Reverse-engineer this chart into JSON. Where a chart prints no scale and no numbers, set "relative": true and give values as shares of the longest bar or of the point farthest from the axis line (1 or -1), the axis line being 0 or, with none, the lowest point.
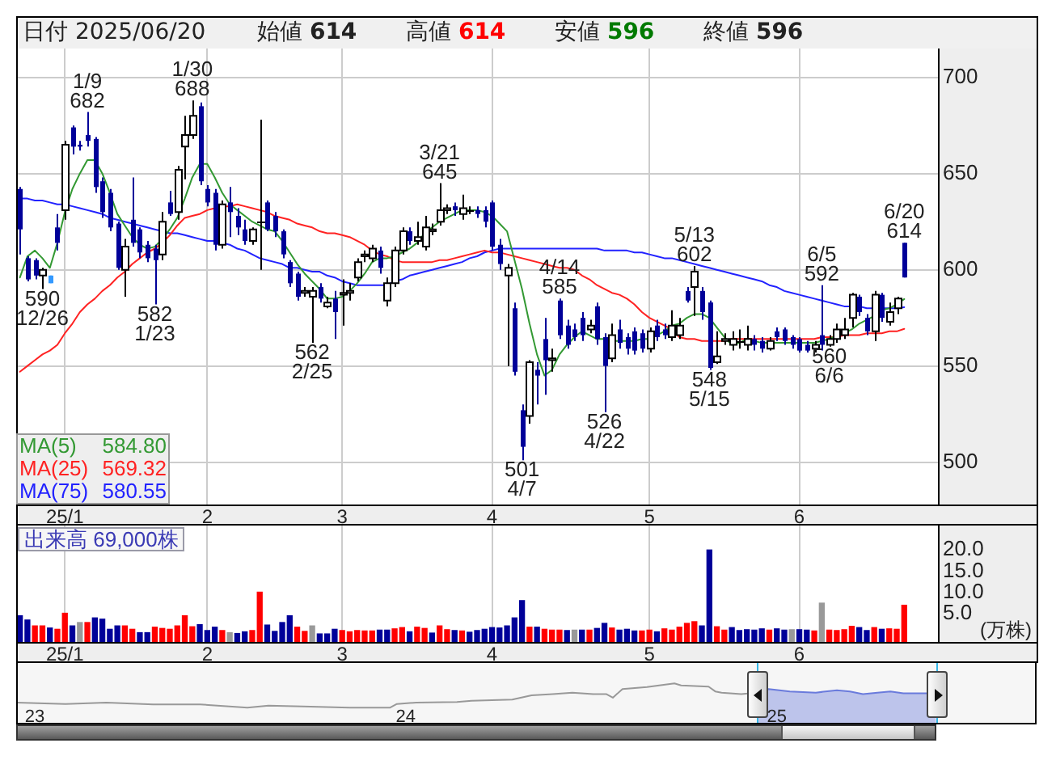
{
  "chart_data": [
    {
      "type": "candlestick",
      "annotations": [
        "日付 2025/06/20",
        "始値 614",
        "高値 614",
        "安値 596",
        "終値 596",
        {
          "text": "1/9\n682",
          "y": 682
        },
        {
          "text": "1/30\n688",
          "y": 688
        },
        {
          "text": "590\n12/26",
          "y": 590
        },
        {
          "text": "582\n1/23",
          "y": 582
        },
        {
          "text": "562\n2/25",
          "y": 562
        },
        {
          "text": "3/21\n645",
          "y": 645
        },
        {
          "text": "501\n4/7",
          "y": 501
        },
        {
          "text": "4/14\n585",
          "y": 585
        },
        {
          "text": "526\n4/22",
          "y": 526
        },
        {
          "text": "5/13\n602",
          "y": 602
        },
        {
          "text": "548\n5/15",
          "y": 548
        },
        {
          "text": "6/5\n592",
          "y": 592
        },
        {
          "text": "560\n6/6",
          "y": 560
        },
        {
          "text": "6/20\n614",
          "y": 614
        }
      ],
      "categories": [
        null,
        null,
        null,
        null,
        null,
        null,
        "25/1",
        null,
        null,
        null,
        null,
        null,
        null,
        null,
        null,
        null,
        null,
        null,
        null,
        null,
        null,
        null,
        null,
        null,
        null,
        "2",
        null,
        null,
        null,
        null,
        null,
        null,
        null,
        null,
        null,
        null,
        null,
        null,
        null,
        null,
        null,
        null,
        null,
        "3",
        null,
        null,
        null,
        null,
        null,
        null,
        null,
        null,
        null,
        null,
        null,
        null,
        null,
        null,
        null,
        null,
        null,
        null,
        null,
        "4",
        null,
        null,
        null,
        null,
        null,
        null,
        null,
        null,
        null,
        null,
        null,
        null,
        null,
        null,
        null,
        null,
        null,
        null,
        null,
        null,
        "5",
        null,
        null,
        null,
        null,
        null,
        null,
        null,
        null,
        null,
        null,
        null,
        null,
        null,
        null,
        null,
        null,
        null,
        null,
        null,
        "6",
        null,
        null,
        null,
        null,
        null,
        null,
        null,
        null,
        null,
        null,
        null,
        null,
        null,
        null
      ],
      "ohlc": [
        [
          642,
          643,
          608,
          621
        ],
        [
          606,
          607,
          594,
          595
        ],
        [
          605,
          606,
          595,
          597
        ],
        [
          597,
          601,
          590,
          600
        ],
        [
          597,
          597,
          593,
          593
        ],
        [
          622,
          629,
          610,
          614
        ],
        [
          631,
          667,
          626,
          665
        ],
        [
          674,
          675,
          660,
          664
        ],
        [
          665,
          667,
          662,
          664
        ],
        [
          670,
          682,
          664,
          667
        ],
        [
          668,
          669,
          640,
          643
        ],
        [
          646,
          648,
          627,
          630
        ],
        [
          640,
          642,
          620,
          622
        ],
        [
          624,
          625,
          600,
          601
        ],
        [
          600,
          616,
          586,
          612
        ],
        [
          626,
          648,
          612,
          614
        ],
        [
          621,
          622,
          606,
          609
        ],
        [
          613,
          615,
          604,
          606
        ],
        [
          611,
          613,
          582,
          605
        ],
        [
          608,
          630,
          605,
          625
        ],
        [
          635,
          641,
          628,
          629
        ],
        [
          630,
          654,
          626,
          652
        ],
        [
          664,
          680,
          647,
          670
        ],
        [
          670,
          688,
          668,
          680
        ],
        [
          685,
          687,
          644,
          646
        ],
        [
          642,
          644,
          633,
          635
        ],
        [
          640,
          642,
          610,
          613
        ],
        [
          613,
          636,
          611,
          634
        ],
        [
          635,
          643,
          617,
          630
        ],
        [
          628,
          632,
          618,
          622
        ],
        [
          621,
          626,
          613,
          615
        ],
        [
          615,
          622,
          613,
          621
        ],
        [
          625,
          678,
          600,
          625
        ],
        [
          635,
          636,
          620,
          621
        ],
        [
          628,
          630,
          617,
          620
        ],
        [
          620,
          621,
          606,
          608
        ],
        [
          604,
          605,
          591,
          593
        ],
        [
          598,
          599,
          584,
          586
        ],
        [
          588,
          591,
          586,
          589
        ],
        [
          586,
          591,
          562,
          589
        ],
        [
          591,
          593,
          583,
          585
        ],
        [
          581,
          586,
          580,
          583
        ],
        [
          585,
          589,
          564,
          578
        ],
        [
          587,
          595,
          571,
          588
        ],
        [
          588,
          593,
          584,
          589
        ],
        [
          596,
          606,
          594,
          604
        ],
        [
          607,
          610,
          604,
          608
        ],
        [
          606,
          613,
          604,
          611
        ],
        [
          610,
          612,
          598,
          601
        ],
        [
          584,
          596,
          581,
          593
        ],
        [
          593,
          612,
          591,
          610
        ],
        [
          610,
          622,
          608,
          620
        ],
        [
          620,
          622,
          613,
          615
        ],
        [
          615,
          625,
          613,
          617
        ],
        [
          612,
          628,
          610,
          622
        ],
        [
          620,
          624,
          618,
          621
        ],
        [
          625,
          645,
          623,
          631
        ],
        [
          631,
          634,
          629,
          632
        ],
        [
          633,
          635,
          628,
          631
        ],
        [
          629,
          639,
          626,
          632
        ],
        [
          631,
          633,
          629,
          631
        ],
        [
          631,
          633,
          627,
          629
        ],
        [
          631,
          633,
          622,
          625
        ],
        [
          635,
          636,
          610,
          612
        ],
        [
          613,
          616,
          600,
          603
        ],
        [
          597,
          603,
          550,
          601
        ],
        [
          580,
          583,
          545,
          547
        ],
        [
          527,
          530,
          501,
          508
        ],
        [
          524,
          553,
          520,
          552
        ],
        [
          548,
          552,
          530,
          545
        ],
        [
          564,
          575,
          535,
          553
        ],
        [
          553,
          559,
          547,
          554
        ],
        [
          584,
          585,
          564,
          566
        ],
        [
          571,
          574,
          559,
          561
        ],
        [
          569,
          572,
          563,
          565
        ],
        [
          575,
          578,
          563,
          566
        ],
        [
          569,
          574,
          567,
          571
        ],
        [
          581,
          583,
          561,
          564
        ],
        [
          565,
          567,
          526,
          550
        ],
        [
          554,
          572,
          552,
          566
        ],
        [
          569,
          574,
          559,
          562
        ],
        [
          565,
          567,
          556,
          559
        ],
        [
          568,
          570,
          556,
          558
        ],
        [
          567,
          569,
          557,
          559
        ],
        [
          559,
          570,
          557,
          568
        ],
        [
          571,
          574,
          563,
          565
        ],
        [
          569,
          572,
          564,
          566
        ],
        [
          565,
          579,
          563,
          571
        ],
        [
          566,
          575,
          564,
          571
        ],
        [
          589,
          591,
          583,
          584
        ],
        [
          591,
          602,
          576,
          599
        ],
        [
          589,
          591,
          574,
          578
        ],
        [
          583,
          584,
          548,
          549
        ],
        [
          552,
          568,
          551,
          555
        ],
        [
          563,
          567,
          561,
          564
        ],
        [
          561,
          568,
          558,
          564
        ],
        [
          563,
          569,
          559,
          563
        ],
        [
          561,
          571,
          558,
          564
        ],
        [
          564,
          566,
          558,
          561
        ],
        [
          563,
          565,
          557,
          559
        ],
        [
          559,
          565,
          558,
          563
        ],
        [
          568,
          570,
          563,
          565
        ],
        [
          569,
          570,
          561,
          563
        ],
        [
          565,
          566,
          559,
          561
        ],
        [
          564,
          565,
          557,
          558
        ],
        [
          561,
          563,
          557,
          558
        ],
        [
          559,
          563,
          557,
          561
        ],
        [
          566,
          592,
          558,
          561
        ],
        [
          561,
          566,
          560,
          564
        ],
        [
          564,
          572,
          562,
          569
        ],
        [
          566,
          575,
          564,
          569
        ],
        [
          575,
          588,
          570,
          587
        ],
        [
          586,
          587,
          576,
          578
        ],
        [
          575,
          577,
          566,
          568
        ],
        [
          568,
          589,
          563,
          587
        ],
        [
          587,
          588,
          573,
          575
        ],
        [
          573,
          583,
          571,
          578
        ],
        [
          580,
          586,
          577,
          585
        ],
        [
          614,
          614,
          596,
          596
        ]
      ],
      "colors": [
        "#000099",
        "#000099",
        "#000099",
        "#ffffff",
        "#3399ff",
        "#000099",
        "#ffffff",
        "#000099",
        "#000099",
        "#000099",
        "#000099",
        "#000099",
        "#000099",
        "#000099",
        "#ffffff",
        "#000099",
        "#000099",
        "#000099",
        "#000099",
        "#ffffff",
        "#000099",
        "#ffffff",
        "#ffffff",
        "#ffffff",
        "#000099",
        "#000099",
        "#000099",
        "#ffffff",
        "#000099",
        "#000099",
        "#000099",
        "#ffffff",
        "#000000",
        "#000099",
        "#000099",
        "#000099",
        "#000099",
        "#000099",
        "#ffffff",
        "#ffffff",
        "#000099",
        "#ffffff",
        "#000099",
        "#ffffff",
        "#ffffff",
        "#ffffff",
        "#ffffff",
        "#ffffff",
        "#000099",
        "#ffffff",
        "#ffffff",
        "#ffffff",
        "#000099",
        "#ffffff",
        "#ffffff",
        "#ffffff",
        "#ffffff",
        "#ffffff",
        "#000099",
        "#ffffff",
        "#000000",
        "#000099",
        "#000099",
        "#000099",
        "#000099",
        "#ffffff",
        "#000099",
        "#000099",
        "#ffffff",
        "#000099",
        "#000099",
        "#ffffff",
        "#000099",
        "#000099",
        "#000099",
        "#000099",
        "#ffffff",
        "#000099",
        "#000099",
        "#ffffff",
        "#000099",
        "#000099",
        "#000099",
        "#000099",
        "#ffffff",
        "#000099",
        "#000099",
        "#ffffff",
        "#ffffff",
        "#000099",
        "#ffffff",
        "#000099",
        "#000099",
        "#ffffff",
        "#ffffff",
        "#ffffff",
        "#000000",
        "#ffffff",
        "#000099",
        "#000099",
        "#ffffff",
        "#000099",
        "#000099",
        "#000099",
        "#000099",
        "#000099",
        "#ffffff",
        "#000099",
        "#ffffff",
        "#ffffff",
        "#ffffff",
        "#ffffff",
        "#000099",
        "#000099",
        "#ffffff",
        "#000099",
        "#ffffff",
        "#ffffff",
        "#000099"
      ],
      "series": [
        {
          "name": "MA(5) 584.80",
          "type": "line",
          "color": "#339933",
          "values": [
            596,
            607,
            610,
            606,
            601,
            614,
            630,
            642,
            650,
            657,
            657,
            650,
            640,
            629,
            623,
            617,
            613,
            611,
            612,
            616,
            621,
            627,
            637,
            648,
            655,
            655,
            648,
            640,
            634,
            631,
            628,
            625,
            623,
            621,
            620,
            615,
            609,
            603,
            598,
            594,
            590,
            585,
            585,
            586,
            589,
            593,
            598,
            604,
            606,
            606,
            607,
            609,
            611,
            614,
            619,
            622,
            625,
            627,
            629,
            631,
            631,
            631,
            630,
            628,
            624,
            620,
            605,
            590,
            572,
            556,
            545,
            548,
            556,
            561,
            565,
            568,
            566,
            564,
            564,
            563,
            563,
            563,
            563,
            564,
            564,
            566,
            568,
            571,
            572,
            575,
            577,
            577,
            575,
            570,
            565,
            561,
            562,
            564,
            563,
            562,
            562,
            562,
            562,
            562,
            562,
            562,
            562,
            563,
            564,
            566,
            567,
            569,
            572,
            574,
            576,
            579,
            580,
            582,
            584.8
          ]
        },
        {
          "name": "MA(25) 569.32",
          "type": "line",
          "color": "#ff2222",
          "values": [
            547,
            550,
            553,
            556,
            558,
            561,
            567,
            572,
            578,
            582,
            585,
            589,
            592,
            596,
            599,
            603,
            606,
            609,
            611,
            614,
            618,
            623,
            627,
            628,
            629,
            631,
            632,
            633,
            633,
            634,
            633,
            632,
            631,
            630,
            628,
            627,
            626,
            624,
            623,
            622,
            620,
            619,
            619,
            618,
            617,
            615,
            613,
            610,
            608,
            607,
            605,
            604,
            604,
            604,
            604,
            604,
            605,
            605,
            606,
            607,
            608,
            609,
            610,
            609,
            609,
            608,
            607,
            606,
            605,
            604,
            603,
            602,
            601,
            601,
            600,
            597,
            595,
            592,
            590,
            588,
            587,
            585,
            582,
            578,
            575,
            573,
            571,
            569,
            565,
            564,
            564,
            563,
            563,
            563,
            563,
            564,
            564,
            564,
            564,
            564,
            564,
            564,
            564,
            564,
            564,
            564,
            564,
            565,
            565,
            565,
            566,
            566,
            566,
            567,
            567,
            567,
            568,
            568,
            569.32
          ]
        },
        {
          "name": "MA(75) 580.55",
          "type": "line",
          "color": "#2222ff",
          "values": [
            637,
            637,
            636,
            636,
            635,
            634,
            634,
            633,
            632,
            631,
            630,
            629,
            627,
            626,
            625,
            624,
            623,
            622,
            621,
            620,
            619,
            619,
            618,
            617,
            616,
            615,
            615,
            614,
            613,
            611,
            610,
            608,
            606,
            605,
            604,
            603,
            601,
            601,
            600,
            599,
            599,
            597,
            596,
            594,
            593,
            592,
            592,
            592,
            592,
            592,
            594,
            595,
            597,
            598,
            599,
            600,
            601,
            602,
            603,
            604,
            606,
            607,
            609,
            610,
            611,
            611,
            611,
            611,
            611,
            611,
            611,
            611,
            611,
            611,
            611,
            611,
            611,
            611,
            610,
            610,
            610,
            610,
            609,
            609,
            608,
            607,
            606,
            606,
            605,
            604,
            603,
            602,
            601,
            600,
            599,
            598,
            597,
            596,
            595,
            594,
            592,
            591,
            589,
            588,
            587,
            586,
            585,
            584,
            583,
            582,
            581,
            581,
            581,
            580,
            580,
            580,
            580,
            580,
            580.55
          ]
        }
      ],
      "ylim": [
        478,
        715
      ],
      "yticks": [
        500,
        550,
        600,
        650,
        700
      ],
      "grid": true,
      "legend": "bottom left"
    },
    {
      "type": "bar",
      "title": "出来高 69,000株",
      "ylabel": "(万株)",
      "categories": [
        null,
        null,
        null,
        null,
        null,
        null,
        "25/1",
        null,
        null,
        null,
        null,
        null,
        null,
        null,
        null,
        null,
        null,
        null,
        null,
        null,
        null,
        null,
        null,
        null,
        null,
        "2",
        null,
        null,
        null,
        null,
        null,
        null,
        null,
        null,
        null,
        null,
        null,
        null,
        null,
        null,
        null,
        null,
        null,
        "3",
        null,
        null,
        null,
        null,
        null,
        null,
        null,
        null,
        null,
        null,
        null,
        null,
        null,
        null,
        null,
        null,
        null,
        null,
        null,
        "4",
        null,
        null,
        null,
        null,
        null,
        null,
        null,
        null,
        null,
        null,
        null,
        null,
        null,
        null,
        null,
        null,
        null,
        null,
        null,
        null,
        "5",
        null,
        null,
        null,
        null,
        null,
        null,
        null,
        null,
        null,
        null,
        null,
        null,
        null,
        null,
        null,
        null,
        null,
        null,
        null,
        "6",
        null,
        null,
        null,
        null,
        null,
        null,
        null,
        null,
        null,
        null,
        null,
        null,
        null,
        null
      ],
      "values": [
        4.4,
        3.4,
        2.0,
        2.0,
        1.5,
        1.2,
        5.0,
        2.0,
        2.8,
        2.8,
        3.9,
        3.6,
        1.2,
        2.0,
        2.0,
        1.2,
        0.4,
        0.4,
        1.7,
        1.4,
        1.2,
        2.0,
        4.4,
        1.8,
        2.3,
        0.9,
        1.7,
        0.9,
        0.4,
        0.2,
        0.6,
        0.9,
        10.0,
        2.2,
        0.7,
        2.8,
        4.4,
        1.7,
        0.7,
        2.0,
        0.1,
        0.1,
        1.2,
        0.9,
        0.6,
        0.9,
        0.8,
        0.8,
        1.0,
        1.0,
        1.3,
        1.6,
        0.6,
        1.7,
        1.4,
        0.3,
        2.0,
        1.1,
        0.9,
        0.8,
        0.5,
        0.9,
        1.2,
        1.6,
        1.5,
        2.0,
        3.9,
        8.0,
        1.7,
        1.7,
        1.2,
        1.0,
        1.0,
        0.9,
        1.0,
        1.0,
        1.0,
        1.4,
        2.6,
        1.5,
        1.0,
        1.2,
        0.8,
        0.8,
        1.0,
        0.6,
        1.3,
        1.0,
        1.7,
        2.6,
        3.0,
        2.0,
        20.0,
        1.8,
        1.0,
        1.6,
        0.9,
        1.1,
        1.0,
        1.3,
        1.0,
        1.3,
        1.0,
        1.1,
        1.1,
        1.0,
        0.8,
        7.4,
        1.0,
        0.9,
        1.1,
        1.9,
        1.6,
        0.9,
        1.6,
        1.2,
        1.3,
        1.2,
        6.9
      ],
      "colors": [
        "#000099",
        "#000099",
        "#ff0000",
        "#ff0000",
        "#000099",
        "#ff0000",
        "#ff0000",
        "#000099",
        "#999999",
        "#ff0000",
        "#000099",
        "#000099",
        "#000099",
        "#000099",
        "#ff0000",
        "#ff0000",
        "#000099",
        "#000099",
        "#ff0000",
        "#ff0000",
        "#ff0000",
        "#ff0000",
        "#ff0000",
        "#ff0000",
        "#000099",
        "#000099",
        "#000099",
        "#ff0000",
        "#999999",
        "#000099",
        "#000099",
        "#ff0000",
        "#ff0000",
        "#000099",
        "#000099",
        "#000099",
        "#000099",
        "#ff0000",
        "#ff0000",
        "#999999",
        "#000099",
        "#000099",
        "#000099",
        "#ff0000",
        "#ff0000",
        "#ff0000",
        "#ff0000",
        "#ff0000",
        "#000099",
        "#000099",
        "#ff0000",
        "#ff0000",
        "#000099",
        "#ff0000",
        "#ff0000",
        "#000099",
        "#ff0000",
        "#ff0000",
        "#000099",
        "#ff0000",
        "#000099",
        "#000099",
        "#000099",
        "#000099",
        "#000099",
        "#000099",
        "#000099",
        "#000099",
        "#ff0000",
        "#000099",
        "#ff0000",
        "#ff0000",
        "#ff0000",
        "#000099",
        "#999999",
        "#000099",
        "#ff0000",
        "#000099",
        "#000099",
        "#ff0000",
        "#000099",
        "#000099",
        "#000099",
        "#ff0000",
        "#ff0000",
        "#000099",
        "#ff0000",
        "#ff0000",
        "#ff0000",
        "#ff0000",
        "#ff0000",
        "#000099",
        "#000099",
        "#ff0000",
        "#ff0000",
        "#000099",
        "#000099",
        "#000099",
        "#000099",
        "#000099",
        "#ff0000",
        "#000099",
        "#000099",
        "#999999",
        "#000099",
        "#000099",
        "#ff0000",
        "#999999",
        "#ff0000",
        "#ff0000",
        "#ff0000",
        "#ff0000",
        "#000099",
        "#000099",
        "#ff0000",
        "#000099",
        "#ff0000",
        "#ff0000",
        "#ff0000"
      ],
      "ylim": [
        -1.8,
        25.8
      ],
      "yticks": [
        {
          "value": 5,
          "label": "5.0"
        },
        {
          "value": 10,
          "label": "10.0"
        },
        {
          "value": 15,
          "label": "15.0"
        },
        {
          "value": 20,
          "label": "20.0"
        }
      ],
      "grid": "x"
    },
    {
      "type": "line",
      "relative": true,
      "tick_labels": "x",
      "xlim": [
        2022.95,
        2025.7
      ],
      "xticks": [
        {
          "value": 2023,
          "label": "23"
        },
        {
          "value": 2024,
          "label": "24"
        },
        {
          "value": 2025,
          "label": "25"
        }
      ],
      "ref_lines": [
        {
          "axis": "x",
          "value": 2024.947,
          "color": "#33b5e5"
        },
        {
          "axis": "x",
          "value": 2025.429,
          "color": "#33b5e5"
        }
      ],
      "series": [
        {
          "type": "line",
          "color": "#999999",
          "x": [
            2022.952,
            2023.083,
            2023.193,
            2023.319,
            2023.446,
            2023.573,
            2023.63,
            2023.722,
            2023.849,
            2023.958,
            2023.976,
            2024.028,
            2024.138,
            2024.177,
            2024.287,
            2024.339,
            2024.396,
            2024.449,
            2024.505,
            2024.54,
            2024.558,
            2024.584,
            2024.65,
            2024.724,
            2024.742,
            2024.816,
            2024.834,
            2024.851,
            2024.904,
            2024.947
          ],
          "values": [
            0.21,
            0.15,
            0.21,
            0.13,
            0.13,
            0,
            0.08,
            0.05,
            0,
            0,
            0.15,
            0.21,
            0.23,
            0.28,
            0.33,
            0.51,
            0.56,
            0.62,
            0.56,
            0.56,
            0.41,
            0.77,
            0.85,
            1,
            0.92,
            0.87,
            0.67,
            0.62,
            0.56,
            0.62
          ]
        },
        {
          "type": "area",
          "color": "#6a7bdc",
          "x": [
            2024.947,
            2024.978,
            2025.035,
            2025.105,
            2025.162,
            2025.197,
            2025.232,
            2025.271,
            2025.306,
            2025.341,
            2025.398,
            2025.429
          ],
          "values": [
            0.62,
            0.77,
            0.67,
            0.62,
            0.72,
            0.67,
            0.56,
            0.62,
            0.67,
            0.59,
            0.59,
            0.59
          ]
        }
      ]
    }
  ]
}
